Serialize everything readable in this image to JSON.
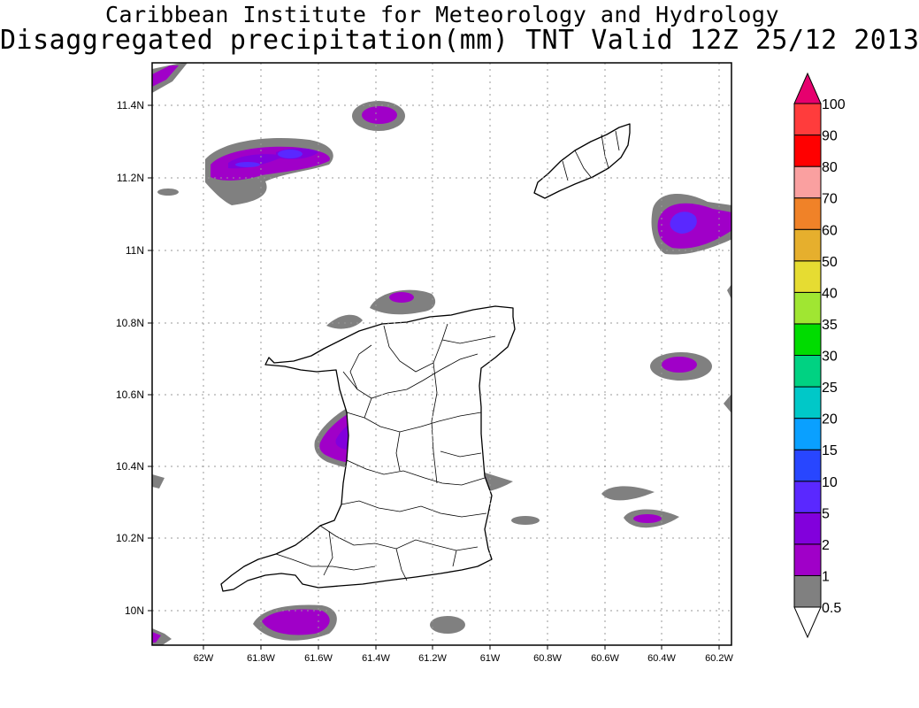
{
  "header": {
    "title_line1": "Caribbean Institute for Meteorology and Hydrology",
    "title_line2": "Disaggregated precipitation(mm) TNT Valid 12Z 25/12 2013"
  },
  "map": {
    "lat_labels": [
      "11.4N",
      "11.2N",
      "11N",
      "10.8N",
      "10.6N",
      "10.4N",
      "10.2N",
      "10N"
    ],
    "lon_labels": [
      "62W",
      "61.8W",
      "61.6W",
      "61.4W",
      "61.2W",
      "61W",
      "60.8W",
      "60.6W",
      "60.4W",
      "60.2W"
    ],
    "gridlines": true,
    "precip_colors": {
      "c0_5": "#808080",
      "c1": "#a000c8",
      "c2": "#8200dc",
      "c5": "#5a28ff"
    }
  },
  "legend": {
    "labels": [
      "0.5",
      "1",
      "2",
      "5",
      "10",
      "15",
      "20",
      "25",
      "30",
      "35",
      "40",
      "50",
      "60",
      "70",
      "80",
      "90",
      "100"
    ],
    "colors": [
      "#ffffff",
      "#808080",
      "#a000c8",
      "#8200dc",
      "#5a28ff",
      "#2846ff",
      "#0aa0ff",
      "#00c8c8",
      "#00d282",
      "#00dc00",
      "#a0e632",
      "#e6dc32",
      "#e6af2d",
      "#f08228",
      "#faa0a0",
      "#ff0000",
      "#ff3c3c",
      "#e6006e"
    ]
  }
}
